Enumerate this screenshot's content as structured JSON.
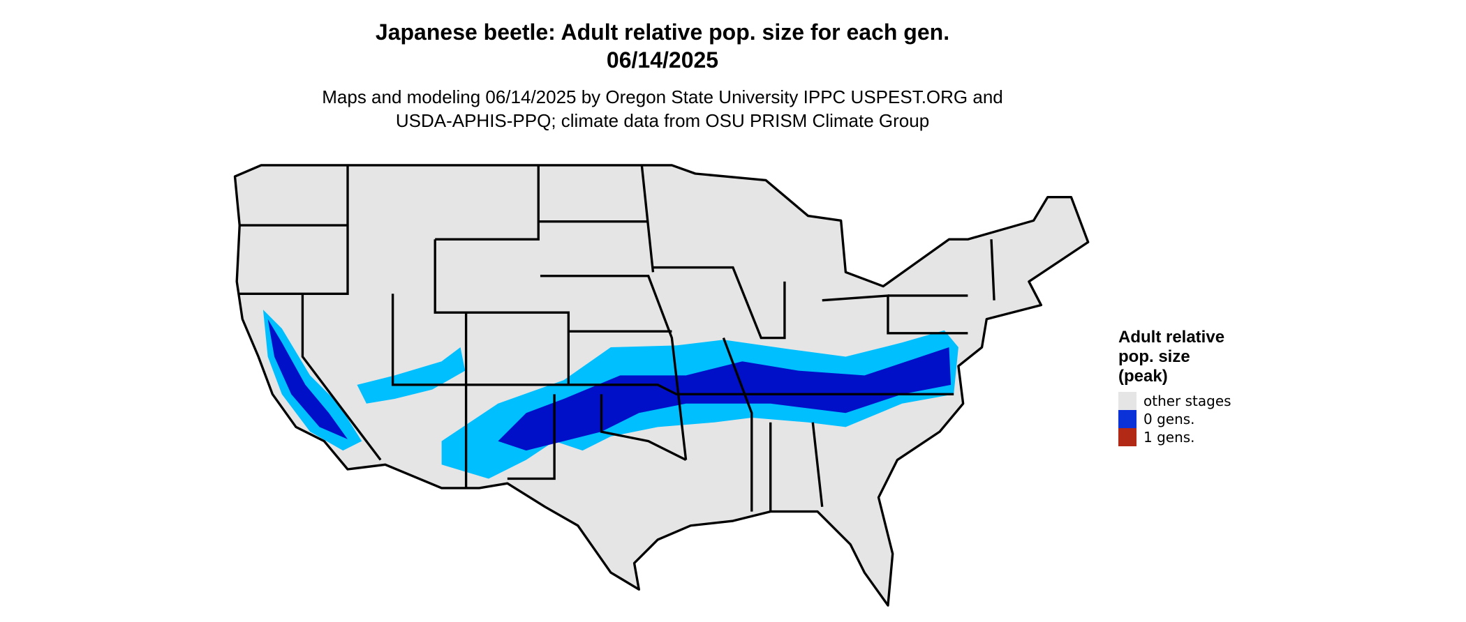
{
  "header": {
    "title": "Japanese beetle: Adult relative pop. size for each gen.",
    "date": "06/14/2025",
    "subtitle": [
      "Maps and modeling 06/14/2025 by Oregon State University IPPC USPEST.ORG and",
      "USDA-APHIS-PPQ; climate data from OSU PRISM Climate Group"
    ]
  },
  "legend": {
    "title": [
      "Adult relative",
      "pop. size",
      "(peak)"
    ],
    "items": [
      {
        "label": "other stages",
        "color": "#e5e5e5"
      },
      {
        "label": "0 gens.",
        "color": "#0a32d8"
      },
      {
        "label": "1 gens.",
        "color": "#b22a16"
      }
    ]
  }
}
